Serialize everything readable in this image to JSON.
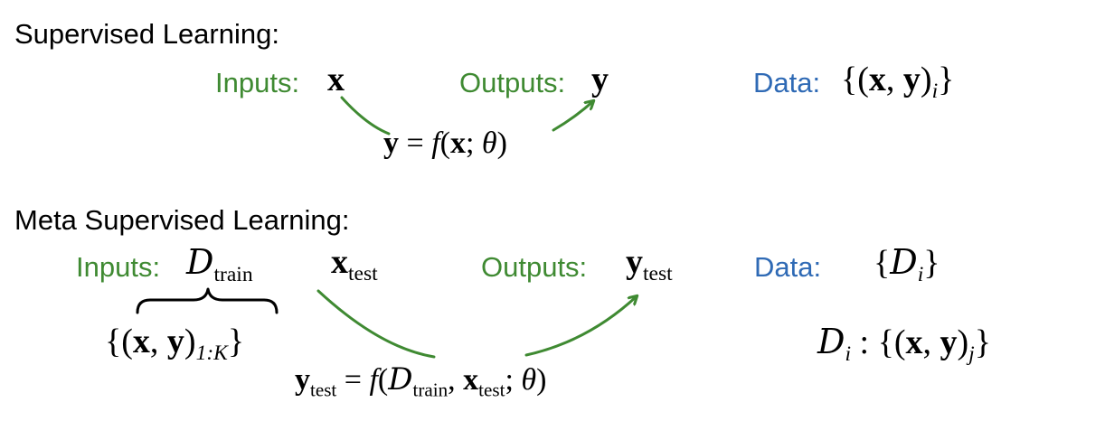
{
  "colors": {
    "green": "#3f8a32",
    "blue": "#2f6ab5",
    "text": "#000000"
  },
  "supervised": {
    "heading": "Supervised Learning:",
    "inputs_label": "Inputs:",
    "outputs_label": "Outputs:",
    "data_label": "Data:",
    "input_var": "x",
    "output_var": "y",
    "data_expr": {
      "open": "{(",
      "x": "x",
      "comma": ", ",
      "y": "y",
      "close_paren": ")",
      "sub": "i",
      "close": "}"
    },
    "equation": {
      "lhs": "y",
      "eq": " = ",
      "f": "f",
      "open": "(",
      "x": "x",
      "semi": "; ",
      "theta": "θ",
      "close": ")"
    }
  },
  "meta": {
    "heading": "Meta Supervised Learning:",
    "inputs_label": "Inputs:",
    "outputs_label": "Outputs:",
    "data_label": "Data:",
    "d_train": {
      "D": "D",
      "sub": "train"
    },
    "x_test": {
      "x": "x",
      "sub": "test"
    },
    "y_test": {
      "y": "y",
      "sub": "test"
    },
    "data_set": {
      "open": "{",
      "D": "D",
      "sub": "i",
      "close": "}"
    },
    "brace_expr": {
      "open": "{(",
      "x": "x",
      "comma": ", ",
      "y": "y",
      "close_paren": ")",
      "sub": "1:K",
      "close": "}"
    },
    "di_expr": {
      "D": "D",
      "sub": "i",
      "colon": " : ",
      "open": "{(",
      "x": "x",
      "comma": ", ",
      "y": "y",
      "close_paren": ")",
      "sub2": "j",
      "close": "}"
    },
    "equation": {
      "lhs": "y",
      "lhs_sub": "test",
      "eq": " = ",
      "f": "f",
      "open": "(",
      "D": "D",
      "D_sub": "train",
      "comma": ", ",
      "x": "x",
      "x_sub": "test",
      "semi": "; ",
      "theta": "θ",
      "close": ")"
    }
  }
}
